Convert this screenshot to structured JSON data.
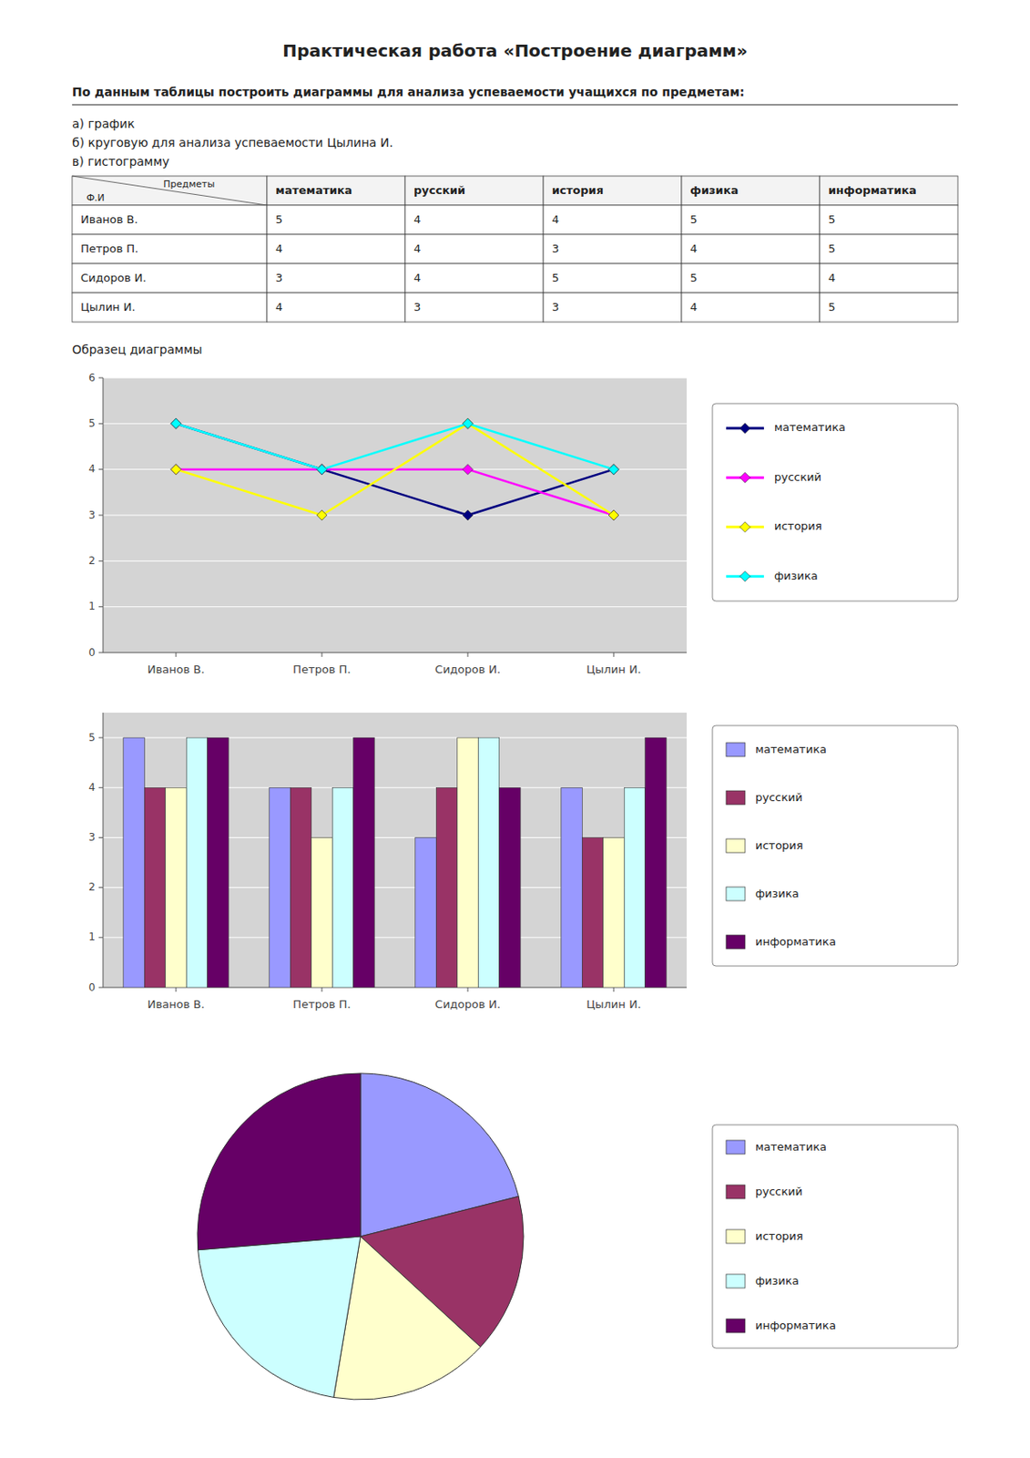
{
  "title": "Практическая работа «Построение диаграмм»",
  "annotations": [
    "По данным таблицы построить диаграммы для анализа успеваемости учащихся по предметам:",
    "а) график",
    "б) круговую для анализа успеваемости Цылина И.",
    "в) гистограмму",
    "Образец диаграммы"
  ],
  "table": {
    "type": "table",
    "col_header": "Предметы",
    "row_header": "Ф.И",
    "columns": [
      "математика",
      "русский",
      "история",
      "физика",
      "информатика"
    ],
    "rows": [
      {
        "name": "Иванов В.",
        "values": [
          5,
          4,
          4,
          5,
          5
        ]
      },
      {
        "name": "Петров П.",
        "values": [
          4,
          4,
          3,
          4,
          5
        ]
      },
      {
        "name": "Сидоров И.",
        "values": [
          3,
          4,
          5,
          5,
          4
        ]
      },
      {
        "name": "Цылин И.",
        "values": [
          4,
          3,
          3,
          4,
          5
        ]
      }
    ]
  },
  "chart_data": [
    {
      "type": "line",
      "categories": [
        "Иванов В.",
        "Петров П.",
        "Сидоров И.",
        "Цылин И."
      ],
      "series": [
        {
          "name": "математика",
          "color": "#000080",
          "marker": "diamond",
          "values": [
            5,
            4,
            3,
            4
          ]
        },
        {
          "name": "русский",
          "color": "#FF00FF",
          "marker": "diamond",
          "values": [
            4,
            4,
            4,
            3
          ]
        },
        {
          "name": "история",
          "color": "#FFFF00",
          "marker": "diamond",
          "values": [
            4,
            3,
            5,
            3
          ]
        },
        {
          "name": "физика",
          "color": "#00FFFF",
          "marker": "diamond",
          "values": [
            5,
            4,
            5,
            4
          ]
        }
      ],
      "ylim": [
        0,
        6
      ],
      "yticks": [
        0,
        1,
        2,
        3,
        4,
        5,
        6
      ],
      "grid": true,
      "legend": "right"
    },
    {
      "type": "bar",
      "categories": [
        "Иванов В.",
        "Петров П.",
        "Сидоров И.",
        "Цылин И."
      ],
      "series": [
        {
          "name": "математика",
          "color": "#9999FF",
          "values": [
            5,
            4,
            3,
            4
          ]
        },
        {
          "name": "русский",
          "color": "#993366",
          "values": [
            4,
            4,
            4,
            3
          ]
        },
        {
          "name": "история",
          "color": "#FFFFCC",
          "values": [
            4,
            3,
            5,
            3
          ]
        },
        {
          "name": "физика",
          "color": "#CCFFFF",
          "values": [
            5,
            4,
            5,
            4
          ]
        },
        {
          "name": "информатика",
          "color": "#660066",
          "values": [
            5,
            5,
            4,
            5
          ]
        }
      ],
      "ylim": [
        0,
        5.5
      ],
      "yticks": [
        0,
        1,
        2,
        3,
        4,
        5
      ],
      "grid": true,
      "legend": "right"
    },
    {
      "type": "pie",
      "categories": [
        "математика",
        "русский",
        "история",
        "физика",
        "информатика"
      ],
      "values": [
        4,
        3,
        3,
        4,
        5
      ],
      "colors": [
        "#9999FF",
        "#993366",
        "#FFFFCC",
        "#CCFFFF",
        "#660066"
      ],
      "legend": "right"
    }
  ]
}
